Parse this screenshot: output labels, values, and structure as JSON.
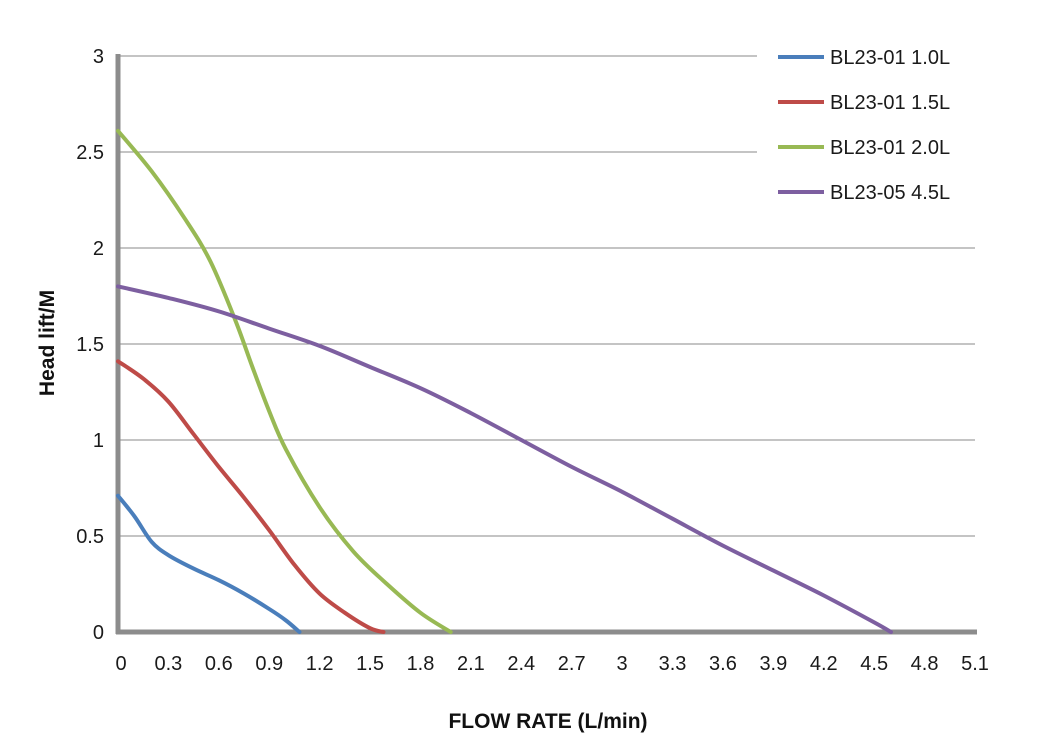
{
  "chart_data": {
    "type": "line",
    "xlabel": "FLOW RATE (L/min)",
    "ylabel": "Head lift/M",
    "xlim": [
      0,
      5.1
    ],
    "ylim": [
      0,
      3
    ],
    "x_ticks": [
      "0",
      "0.3",
      "0.6",
      "0.9",
      "1.2",
      "1.5",
      "1.8",
      "2.1",
      "2.4",
      "2.7",
      "3",
      "3.3",
      "3.6",
      "3.9",
      "4.2",
      "4.5",
      "4.8",
      "5.1"
    ],
    "y_ticks": [
      "0",
      "0.5",
      "1",
      "1.5",
      "2",
      "2.5",
      "3"
    ],
    "grid": "horizontal",
    "legend_position": "top-right",
    "series": [
      {
        "name": "BL23-01 1.0L",
        "color": "#4a7ebb",
        "points": [
          [
            0,
            0.71
          ],
          [
            0.1,
            0.6
          ],
          [
            0.2,
            0.47
          ],
          [
            0.3,
            0.4
          ],
          [
            0.45,
            0.33
          ],
          [
            0.6,
            0.27
          ],
          [
            0.75,
            0.2
          ],
          [
            0.9,
            0.12
          ],
          [
            1.0,
            0.06
          ],
          [
            1.08,
            0.0
          ]
        ]
      },
      {
        "name": "BL23-01 1.5L",
        "color": "#be4b48",
        "points": [
          [
            0,
            1.41
          ],
          [
            0.15,
            1.32
          ],
          [
            0.3,
            1.2
          ],
          [
            0.45,
            1.03
          ],
          [
            0.6,
            0.86
          ],
          [
            0.75,
            0.7
          ],
          [
            0.9,
            0.53
          ],
          [
            1.05,
            0.35
          ],
          [
            1.2,
            0.2
          ],
          [
            1.35,
            0.1
          ],
          [
            1.5,
            0.02
          ],
          [
            1.58,
            0.0
          ]
        ]
      },
      {
        "name": "BL23-01 2.0L",
        "color": "#98b954",
        "points": [
          [
            0,
            2.61
          ],
          [
            0.2,
            2.4
          ],
          [
            0.4,
            2.15
          ],
          [
            0.55,
            1.93
          ],
          [
            0.7,
            1.62
          ],
          [
            0.8,
            1.38
          ],
          [
            0.9,
            1.15
          ],
          [
            1.0,
            0.95
          ],
          [
            1.2,
            0.65
          ],
          [
            1.4,
            0.42
          ],
          [
            1.6,
            0.25
          ],
          [
            1.8,
            0.1
          ],
          [
            1.98,
            0.0
          ]
        ]
      },
      {
        "name": "BL23-05 4.5L",
        "color": "#7d5fa0",
        "points": [
          [
            0,
            1.8
          ],
          [
            0.3,
            1.74
          ],
          [
            0.6,
            1.67
          ],
          [
            0.9,
            1.58
          ],
          [
            1.2,
            1.49
          ],
          [
            1.5,
            1.38
          ],
          [
            1.8,
            1.27
          ],
          [
            2.1,
            1.14
          ],
          [
            2.4,
            1.0
          ],
          [
            2.7,
            0.86
          ],
          [
            3.0,
            0.73
          ],
          [
            3.3,
            0.59
          ],
          [
            3.6,
            0.45
          ],
          [
            3.9,
            0.32
          ],
          [
            4.2,
            0.19
          ],
          [
            4.5,
            0.05
          ],
          [
            4.6,
            0.0
          ]
        ]
      }
    ]
  }
}
